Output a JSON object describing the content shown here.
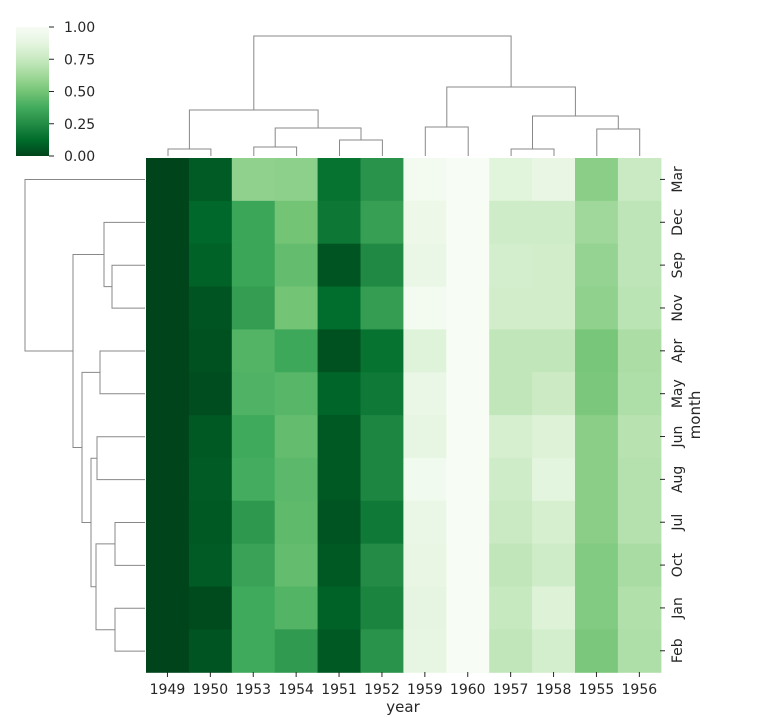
{
  "chart_data": {
    "type": "heatmap",
    "title": "",
    "xlabel": "year",
    "ylabel": "month",
    "columns": [
      "1949",
      "1950",
      "1953",
      "1954",
      "1951",
      "1952",
      "1959",
      "1960",
      "1957",
      "1958",
      "1955",
      "1956"
    ],
    "rows": [
      "Mar",
      "Dec",
      "Sep",
      "Nov",
      "Apr",
      "May",
      "Jun",
      "Aug",
      "Jul",
      "Oct",
      "Jan",
      "Feb"
    ],
    "values": [
      [
        0.0,
        0.07,
        0.58,
        0.57,
        0.15,
        0.28,
        0.97,
        1.0,
        0.86,
        0.9,
        0.56,
        0.76
      ],
      [
        0.0,
        0.11,
        0.35,
        0.5,
        0.17,
        0.33,
        0.93,
        1.0,
        0.78,
        0.78,
        0.62,
        0.72
      ],
      [
        0.0,
        0.09,
        0.35,
        0.46,
        0.05,
        0.24,
        0.91,
        1.0,
        0.8,
        0.79,
        0.59,
        0.72
      ],
      [
        0.0,
        0.05,
        0.32,
        0.5,
        0.13,
        0.32,
        0.97,
        1.0,
        0.79,
        0.79,
        0.58,
        0.71
      ],
      [
        0.0,
        0.04,
        0.42,
        0.36,
        0.04,
        0.15,
        0.85,
        1.0,
        0.73,
        0.73,
        0.51,
        0.66
      ],
      [
        0.0,
        0.03,
        0.41,
        0.43,
        0.1,
        0.18,
        0.91,
        1.0,
        0.73,
        0.77,
        0.52,
        0.67
      ],
      [
        0.0,
        0.06,
        0.37,
        0.46,
        0.06,
        0.23,
        0.89,
        1.0,
        0.81,
        0.84,
        0.56,
        0.7
      ],
      [
        0.0,
        0.07,
        0.38,
        0.44,
        0.06,
        0.23,
        0.96,
        1.0,
        0.78,
        0.87,
        0.56,
        0.69
      ],
      [
        0.0,
        0.06,
        0.3,
        0.45,
        0.05,
        0.18,
        0.91,
        1.0,
        0.76,
        0.81,
        0.56,
        0.69
      ],
      [
        0.0,
        0.07,
        0.34,
        0.46,
        0.06,
        0.25,
        0.9,
        1.0,
        0.73,
        0.78,
        0.54,
        0.65
      ],
      [
        0.0,
        0.02,
        0.37,
        0.42,
        0.09,
        0.22,
        0.88,
        1.0,
        0.75,
        0.84,
        0.54,
        0.68
      ],
      [
        0.0,
        0.05,
        0.37,
        0.31,
        0.06,
        0.28,
        0.89,
        1.0,
        0.73,
        0.8,
        0.52,
        0.67
      ]
    ],
    "vmin": 0,
    "vmax": 1,
    "colormap": [
      "#00441b",
      "#006d2c",
      "#238b45",
      "#41ab5d",
      "#74c476",
      "#a1d99b",
      "#c7e9c0",
      "#e5f5e0",
      "#f7fcf5"
    ],
    "colorbar_ticks": [
      "0.00",
      "0.25",
      "0.50",
      "0.75",
      "1.00"
    ],
    "dendrogram_color": "#888888",
    "col_dendrogram": true,
    "row_dendrogram": true
  }
}
